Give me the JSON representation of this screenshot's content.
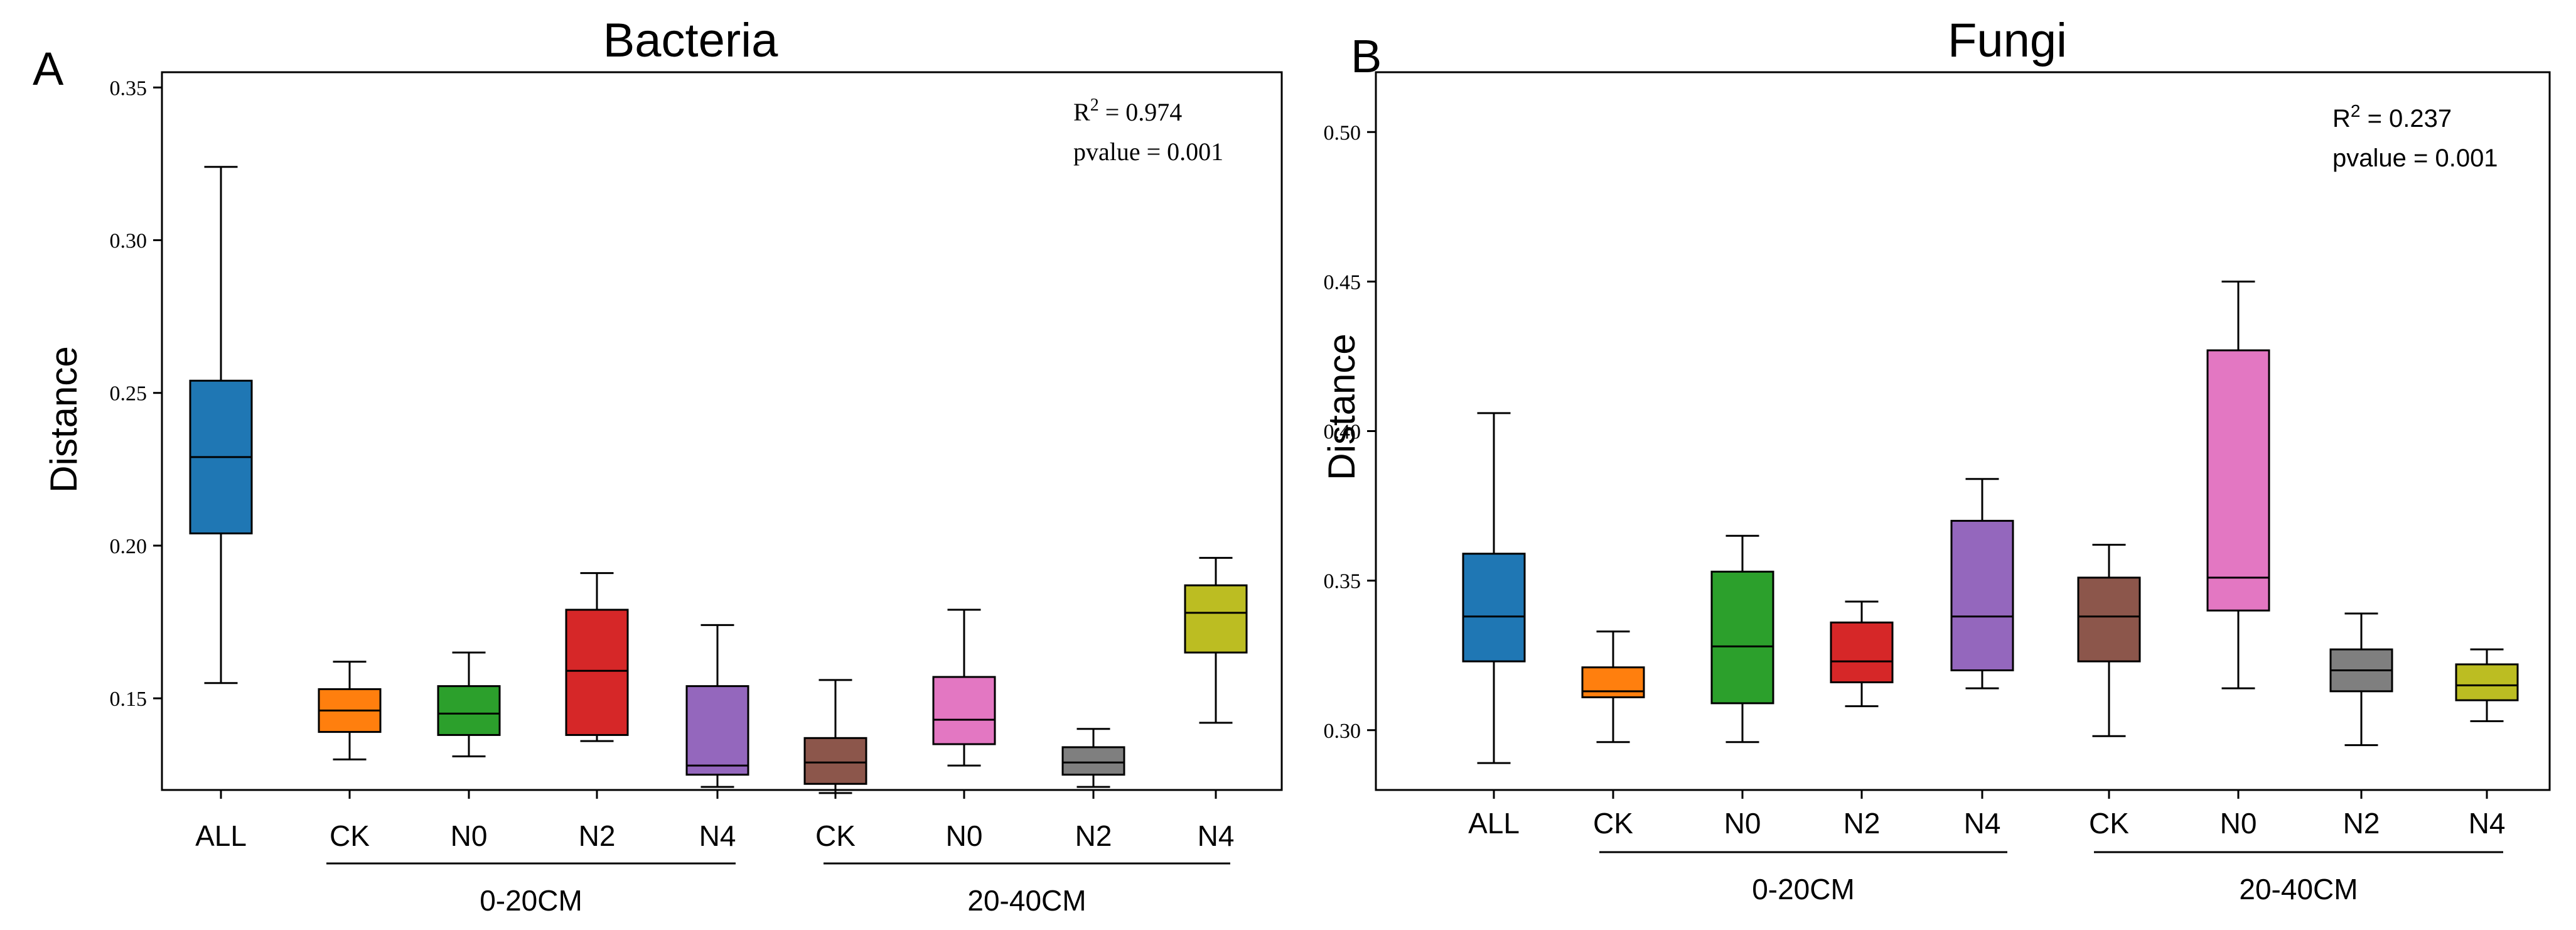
{
  "chart_data": [
    {
      "type": "box",
      "panel": "A",
      "title": "Bacteria",
      "ylabel": "Distance",
      "ylim": [
        0.12,
        0.355
      ],
      "yticks": [
        "0.15",
        "0.20",
        "0.25",
        "0.30",
        "0.35"
      ],
      "categories": [
        "ALL",
        "CK",
        "N0",
        "N2",
        "N4",
        "CK",
        "N0",
        "N2",
        "N4"
      ],
      "groups": [
        {
          "label": "0-20CM",
          "from": 1,
          "to": 4
        },
        {
          "label": "20-40CM",
          "from": 5,
          "to": 8
        }
      ],
      "stats": {
        "r2_prefix": "R",
        "r2_sup": "2",
        "r2_value": " = 0.974",
        "pvalue": "pvalue = 0.001"
      },
      "stat_font": "serif",
      "boxes": [
        {
          "name": "ALL",
          "color": "#1f77b4",
          "min": 0.155,
          "q1": 0.204,
          "median": 0.229,
          "q3": 0.254,
          "max": 0.324
        },
        {
          "name": "CK",
          "color": "#ff7f0e",
          "min": 0.13,
          "q1": 0.139,
          "median": 0.146,
          "q3": 0.153,
          "max": 0.162
        },
        {
          "name": "N0",
          "color": "#2ca02c",
          "min": 0.131,
          "q1": 0.138,
          "median": 0.145,
          "q3": 0.154,
          "max": 0.165
        },
        {
          "name": "N2",
          "color": "#d62728",
          "min": 0.136,
          "q1": 0.138,
          "median": 0.159,
          "q3": 0.179,
          "max": 0.191
        },
        {
          "name": "N4",
          "color": "#9467bd",
          "min": 0.121,
          "q1": 0.125,
          "median": 0.128,
          "q3": 0.154,
          "max": 0.174
        },
        {
          "name": "CK",
          "color": "#8c564b",
          "min": 0.119,
          "q1": 0.122,
          "median": 0.129,
          "q3": 0.137,
          "max": 0.156
        },
        {
          "name": "N0",
          "color": "#e377c2",
          "min": 0.128,
          "q1": 0.135,
          "median": 0.143,
          "q3": 0.157,
          "max": 0.179
        },
        {
          "name": "N2",
          "color": "#7f7f7f",
          "min": 0.121,
          "q1": 0.125,
          "median": 0.129,
          "q3": 0.134,
          "max": 0.14
        },
        {
          "name": "N4",
          "color": "#bcbd22",
          "min": 0.142,
          "q1": 0.165,
          "median": 0.178,
          "q3": 0.187,
          "max": 0.196
        }
      ]
    },
    {
      "type": "box",
      "panel": "B",
      "title": "Fungi",
      "ylabel": "Distance",
      "ylim": [
        0.28,
        0.52
      ],
      "yticks": [
        "0.30",
        "0.35",
        "0.40",
        "0.45",
        "0.50"
      ],
      "categories": [
        "ALL",
        "CK",
        "N0",
        "N2",
        "N4",
        "CK",
        "N0",
        "N2",
        "N4"
      ],
      "groups": [
        {
          "label": "0-20CM",
          "from": 1,
          "to": 4
        },
        {
          "label": "20-40CM",
          "from": 5,
          "to": 8
        }
      ],
      "stats": {
        "r2_prefix": "R",
        "r2_sup": "2",
        "r2_value": " = 0.237",
        "pvalue": "pvalue = 0.001"
      },
      "stat_font": "sans",
      "boxes": [
        {
          "name": "ALL",
          "color": "#1f77b4",
          "min": 0.289,
          "q1": 0.323,
          "median": 0.338,
          "q3": 0.359,
          "max": 0.406
        },
        {
          "name": "CK",
          "color": "#ff7f0e",
          "min": 0.296,
          "q1": 0.311,
          "median": 0.313,
          "q3": 0.321,
          "max": 0.333
        },
        {
          "name": "N0",
          "color": "#2ca02c",
          "min": 0.296,
          "q1": 0.309,
          "median": 0.328,
          "q3": 0.353,
          "max": 0.365
        },
        {
          "name": "N2",
          "color": "#d62728",
          "min": 0.308,
          "q1": 0.316,
          "median": 0.323,
          "q3": 0.336,
          "max": 0.343
        },
        {
          "name": "N4",
          "color": "#9467bd",
          "min": 0.314,
          "q1": 0.32,
          "median": 0.338,
          "q3": 0.37,
          "max": 0.384
        },
        {
          "name": "CK",
          "color": "#8c564b",
          "min": 0.298,
          "q1": 0.323,
          "median": 0.338,
          "q3": 0.351,
          "max": 0.362
        },
        {
          "name": "N0",
          "color": "#e377c2",
          "min": 0.314,
          "q1": 0.34,
          "median": 0.351,
          "q3": 0.427,
          "max": 0.45
        },
        {
          "name": "N2",
          "color": "#7f7f7f",
          "min": 0.295,
          "q1": 0.313,
          "median": 0.32,
          "q3": 0.327,
          "max": 0.339
        },
        {
          "name": "N4",
          "color": "#bcbd22",
          "min": 0.303,
          "q1": 0.31,
          "median": 0.315,
          "q3": 0.322,
          "max": 0.327
        }
      ]
    }
  ]
}
